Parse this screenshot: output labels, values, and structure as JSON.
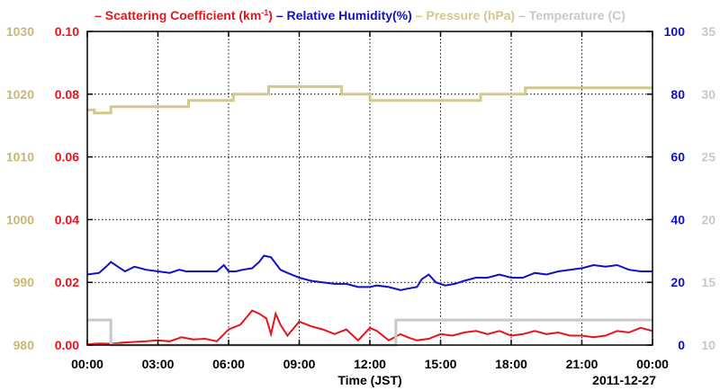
{
  "chart_data": {
    "type": "line",
    "legend": [
      {
        "name": "Scattering Coefficient (km",
        "sup": "-1",
        "tail": ")",
        "color": "#e8141c"
      },
      {
        "name": "Relative Humidity(%)",
        "color": "#1010c8"
      },
      {
        "name": "Pressure (hPa)",
        "color": "#d2c88c"
      },
      {
        "name": "Temperature (",
        "tail": "C)",
        "color": "#c8c8c8"
      }
    ],
    "xlabel": "Time (JST)",
    "date_label": "2011-12-27",
    "x_ticks": [
      "00:00",
      "03:00",
      "06:00",
      "09:00",
      "12:00",
      "15:00",
      "18:00",
      "21:00",
      "00:00"
    ],
    "axes": {
      "pressure": {
        "ylim": [
          980,
          1030
        ],
        "ticks": [
          "980",
          "990",
          "1000",
          "1010",
          "1020",
          "1030"
        ],
        "color": "#c8b878"
      },
      "scattering": {
        "ylim": [
          0,
          0.1
        ],
        "ticks": [
          "0.00",
          "0.02",
          "0.04",
          "0.06",
          "0.08",
          "0.10"
        ],
        "color": "#e8141c"
      },
      "humidity": {
        "ylim": [
          0,
          100
        ],
        "ticks": [
          "0",
          "20",
          "40",
          "60",
          "80",
          "100"
        ],
        "color": "#1010c8"
      },
      "temperature": {
        "ylim": [
          10,
          35
        ],
        "ticks": [
          "10",
          "15",
          "20",
          "25",
          "30",
          "35"
        ],
        "color": "#c8c8c8"
      }
    },
    "grid": true,
    "series": [
      {
        "name": "Pressure (hPa)",
        "axis": "pressure",
        "color": "#d2c88c",
        "x": [
          0,
          0.3,
          0.3,
          1.0,
          1.0,
          4.3,
          4.3,
          6.2,
          6.2,
          7.7,
          7.7,
          10.8,
          10.8,
          12.0,
          12.0,
          16.7,
          16.7,
          18.6,
          18.6,
          24.0
        ],
        "y": [
          1017.5,
          1017.5,
          1017.0,
          1017.0,
          1018.0,
          1018.0,
          1019.0,
          1019.0,
          1020.0,
          1020.0,
          1021.2,
          1021.2,
          1020.0,
          1020.0,
          1019.0,
          1019.0,
          1020.0,
          1020.0,
          1021.0,
          1021.0
        ]
      },
      {
        "name": "Relative Humidity(%)",
        "axis": "humidity",
        "color": "#1010c8",
        "x": [
          0,
          0.5,
          0.8,
          1.0,
          1.3,
          1.6,
          2.0,
          2.5,
          3.0,
          3.5,
          3.9,
          4.2,
          4.5,
          5.0,
          5.5,
          5.8,
          6.0,
          6.3,
          6.6,
          7.0,
          7.3,
          7.5,
          7.8,
          8.2,
          8.5,
          9.0,
          9.5,
          10.0,
          10.5,
          11.0,
          11.5,
          12.0,
          12.3,
          12.8,
          13.3,
          13.6,
          14.0,
          14.2,
          14.5,
          14.8,
          15.2,
          15.6,
          16.0,
          16.5,
          17.0,
          17.5,
          18.0,
          18.5,
          19.0,
          19.5,
          20.0,
          20.5,
          21.0,
          21.5,
          22.0,
          22.5,
          23.0,
          23.5,
          24.0
        ],
        "y": [
          22.5,
          23,
          25,
          26.5,
          25,
          23.5,
          25,
          24,
          23.5,
          23,
          24,
          23.5,
          23.5,
          23.5,
          23.5,
          25.5,
          23.5,
          23.5,
          24,
          24.5,
          26.5,
          28.5,
          28,
          24,
          23,
          21.5,
          20.5,
          20,
          19.5,
          19.5,
          18.5,
          18.5,
          19,
          18.5,
          17.5,
          18,
          18.5,
          21,
          22.5,
          20,
          19,
          19.5,
          20.5,
          21.5,
          21.5,
          22.5,
          21.5,
          21.5,
          23,
          22.5,
          23.5,
          24,
          24.5,
          25.5,
          25,
          25.5,
          24,
          23.5,
          23.5
        ]
      },
      {
        "name": "Scattering Coefficient (km-1)",
        "axis": "scattering",
        "color": "#e8141c",
        "x": [
          0,
          0.5,
          1.0,
          1.5,
          2.0,
          2.5,
          3.0,
          3.5,
          4.0,
          4.5,
          5.0,
          5.5,
          6.0,
          6.5,
          7.0,
          7.3,
          7.6,
          7.8,
          8.0,
          8.2,
          8.5,
          9.0,
          9.5,
          10.0,
          10.5,
          11.0,
          11.5,
          12.0,
          12.3,
          12.8,
          13.3,
          13.6,
          14.0,
          14.5,
          15.0,
          15.5,
          16.0,
          16.5,
          17.0,
          17.5,
          18.0,
          18.5,
          19.0,
          19.5,
          20.0,
          20.5,
          21.0,
          21.5,
          22.0,
          22.5,
          23.0,
          23.5,
          24.0
        ],
        "y": [
          0.0002,
          0.0005,
          0.0004,
          0.0008,
          0.001,
          0.0012,
          0.0015,
          0.0012,
          0.0025,
          0.0018,
          0.002,
          0.0012,
          0.005,
          0.0065,
          0.011,
          0.01,
          0.0085,
          0.0035,
          0.01,
          0.0065,
          0.003,
          0.0075,
          0.006,
          0.005,
          0.0035,
          0.005,
          0.0015,
          0.0055,
          0.0045,
          0.0015,
          0.0035,
          0.0025,
          0.0015,
          0.002,
          0.0035,
          0.003,
          0.004,
          0.0045,
          0.0035,
          0.0045,
          0.003,
          0.0035,
          0.0045,
          0.0035,
          0.004,
          0.003,
          0.003,
          0.0025,
          0.003,
          0.0045,
          0.004,
          0.0055,
          0.0045
        ]
      },
      {
        "name": "Temperature (C)",
        "axis": "temperature",
        "color": "#c8c8c8",
        "x": [
          0,
          1.0,
          1.0,
          13.1,
          13.1,
          24.0
        ],
        "y": [
          12.0,
          12.0,
          10.0,
          10.0,
          12.0,
          12.0
        ]
      }
    ]
  }
}
